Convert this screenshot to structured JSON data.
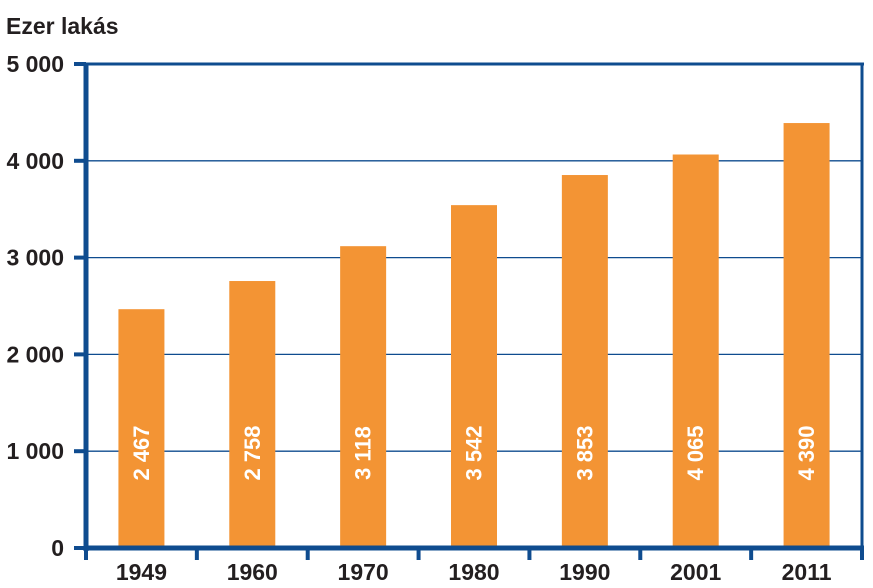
{
  "chart_data": {
    "type": "bar",
    "ylabel": "Ezer lakás",
    "categories": [
      "1949",
      "1960",
      "1970",
      "1980",
      "1990",
      "2001",
      "2011"
    ],
    "values": [
      2467,
      2758,
      3118,
      3542,
      3853,
      4065,
      4390
    ],
    "value_labels": [
      "2 467",
      "2 758",
      "3 118",
      "3 542",
      "3 853",
      "4 065",
      "4 390"
    ],
    "yticks": [
      0,
      1000,
      2000,
      3000,
      4000,
      5000
    ],
    "ytick_labels": [
      "0",
      "1 000",
      "2 000",
      "3 000",
      "4 000",
      "5 000"
    ],
    "ylim": [
      0,
      5000
    ],
    "grid": true,
    "colors": {
      "bar": "#f39434",
      "axis": "#0f4c8f",
      "grid": "#0f4c8f",
      "value_text": "#ffffff"
    }
  }
}
